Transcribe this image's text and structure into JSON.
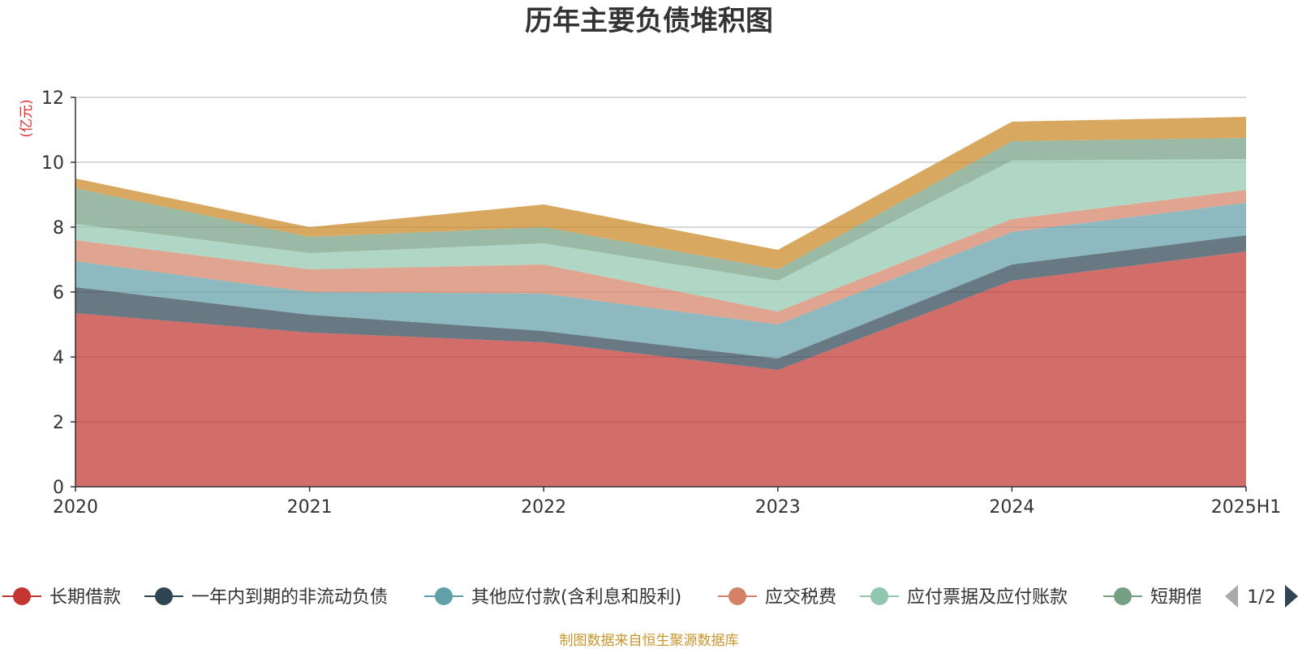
{
  "chart_data": {
    "type": "area",
    "stacked": true,
    "title": "历年主要负债堆积图",
    "unit_label": "(亿元)",
    "categories": [
      "2020",
      "2021",
      "2022",
      "2023",
      "2024",
      "2025H1"
    ],
    "ylim": [
      0,
      12
    ],
    "yticks": [
      0,
      2,
      4,
      6,
      8,
      10,
      12
    ],
    "grid": true,
    "series": [
      {
        "name": "长期借款",
        "color": "#c23531",
        "values": [
          5.35,
          4.75,
          4.45,
          3.6,
          6.35,
          7.25
        ]
      },
      {
        "name": "一年内到期的非流动负债",
        "color": "#2f4554",
        "values": [
          0.8,
          0.55,
          0.35,
          0.35,
          0.5,
          0.5
        ]
      },
      {
        "name": "其他应付款(含利息和股利)",
        "color": "#61a0a8",
        "values": [
          0.8,
          0.7,
          1.15,
          1.05,
          1.0,
          1.0
        ]
      },
      {
        "name": "应交税费",
        "color": "#d48265",
        "values": [
          0.65,
          0.7,
          0.9,
          0.4,
          0.4,
          0.4
        ]
      },
      {
        "name": "应付票据及应付账款",
        "color": "#91c7ae",
        "values": [
          0.5,
          0.5,
          0.65,
          0.95,
          1.8,
          0.95
        ]
      },
      {
        "name": "短期借款",
        "color": "#749f83",
        "values": [
          1.1,
          0.5,
          0.5,
          0.35,
          0.6,
          0.65
        ]
      },
      {
        "name": "",
        "color": "#ca8622",
        "values": [
          0.3,
          0.3,
          0.7,
          0.6,
          0.6,
          0.65
        ]
      }
    ],
    "legend_position": "bottom",
    "legend_page": "1/2",
    "source_note": "制图数据来自恒生聚源数据库"
  }
}
